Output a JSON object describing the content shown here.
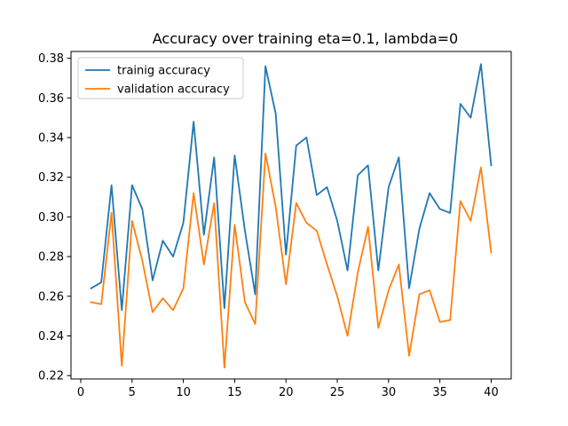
{
  "chart_data": {
    "type": "line",
    "title": "Accuracy over training eta=0.1, lambda=0",
    "xlabel": "",
    "ylabel": "",
    "x": [
      1,
      2,
      3,
      4,
      5,
      6,
      7,
      8,
      9,
      10,
      11,
      12,
      13,
      14,
      15,
      16,
      17,
      18,
      19,
      20,
      21,
      22,
      23,
      24,
      25,
      26,
      27,
      28,
      29,
      30,
      31,
      32,
      33,
      34,
      35,
      36,
      37,
      38,
      39,
      40
    ],
    "xlim": [
      -0.95,
      41.95
    ],
    "ylim": [
      0.2183,
      0.3834
    ],
    "xticks": [
      0,
      5,
      10,
      15,
      20,
      25,
      30,
      35,
      40
    ],
    "yticks": [
      0.22,
      0.24,
      0.26,
      0.28,
      0.3,
      0.32,
      0.34,
      0.36,
      0.38
    ],
    "ytick_labels": [
      "0.22",
      "0.24",
      "0.26",
      "0.28",
      "0.30",
      "0.32",
      "0.34",
      "0.36",
      "0.38"
    ],
    "grid": false,
    "legend_position": "top-left",
    "series": [
      {
        "name": "trainig accuracy",
        "color": "#1f77b4",
        "values": [
          0.264,
          0.267,
          0.316,
          0.253,
          0.316,
          0.304,
          0.268,
          0.288,
          0.28,
          0.297,
          0.348,
          0.291,
          0.33,
          0.254,
          0.331,
          0.293,
          0.261,
          0.376,
          0.352,
          0.281,
          0.336,
          0.34,
          0.311,
          0.315,
          0.298,
          0.273,
          0.321,
          0.326,
          0.273,
          0.315,
          0.33,
          0.264,
          0.294,
          0.312,
          0.304,
          0.302,
          0.357,
          0.35,
          0.377,
          0.326
        ]
      },
      {
        "name": "validation accuracy",
        "color": "#ff7f0e",
        "values": [
          0.257,
          0.256,
          0.302,
          0.225,
          0.298,
          0.278,
          0.252,
          0.259,
          0.253,
          0.264,
          0.312,
          0.276,
          0.307,
          0.224,
          0.296,
          0.257,
          0.246,
          0.332,
          0.305,
          0.266,
          0.307,
          0.297,
          0.293,
          0.276,
          0.26,
          0.24,
          0.272,
          0.295,
          0.244,
          0.263,
          0.276,
          0.23,
          0.261,
          0.263,
          0.247,
          0.248,
          0.308,
          0.298,
          0.325,
          0.282
        ]
      }
    ]
  }
}
